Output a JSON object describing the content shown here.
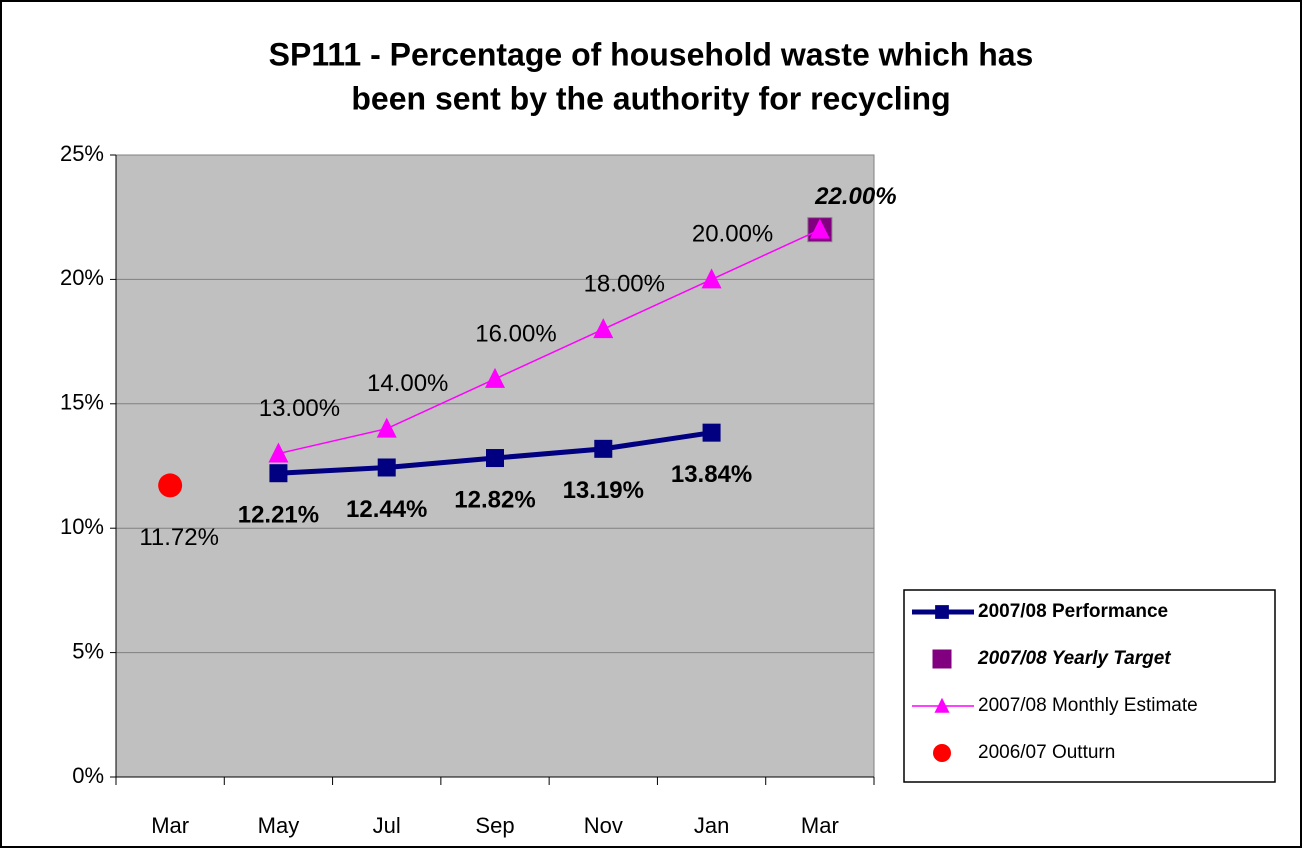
{
  "chart_data": {
    "type": "line",
    "title": [
      "SP111 - Percentage of household waste which has",
      "been sent by the authority for recycling"
    ],
    "categories": [
      "Mar",
      "May",
      "Jul",
      "Sep",
      "Nov",
      "Jan",
      "Mar"
    ],
    "ylim": [
      0,
      25
    ],
    "yticks": [
      {
        "value": 0,
        "label": "0%"
      },
      {
        "value": 5,
        "label": "5%"
      },
      {
        "value": 10,
        "label": "10%"
      },
      {
        "value": 15,
        "label": "15%"
      },
      {
        "value": 20,
        "label": "20%"
      },
      {
        "value": 25,
        "label": "25%"
      }
    ],
    "grid": true,
    "legend": "lower right",
    "series": [
      {
        "name": "2007/08 Performance",
        "color": "#000080",
        "values": [
          null,
          12.21,
          12.44,
          12.82,
          13.19,
          13.84,
          null
        ],
        "value_labels": [
          null,
          "12.21%",
          "12.44%",
          "12.82%",
          "13.19%",
          "13.84%",
          null
        ]
      },
      {
        "name": "2007/08 Yearly Target",
        "color": "#800080",
        "values": [
          null,
          null,
          null,
          null,
          null,
          null,
          22.0
        ],
        "value_labels": [
          null,
          null,
          null,
          null,
          null,
          null,
          "22.00%"
        ]
      },
      {
        "name": "2007/08 Monthly Estimate",
        "color": "#ff00ff",
        "values": [
          null,
          13.0,
          14.0,
          16.0,
          18.0,
          20.0,
          22.0
        ],
        "value_labels": [
          null,
          "13.00%",
          "14.00%",
          "16.00%",
          "18.00%",
          "20.00%",
          null
        ]
      },
      {
        "name": "2006/07 Outturn",
        "color": "#ff0000",
        "values": [
          11.72,
          null,
          null,
          null,
          null,
          null,
          null
        ],
        "value_labels": [
          "11.72%",
          null,
          null,
          null,
          null,
          null,
          null
        ]
      }
    ]
  }
}
